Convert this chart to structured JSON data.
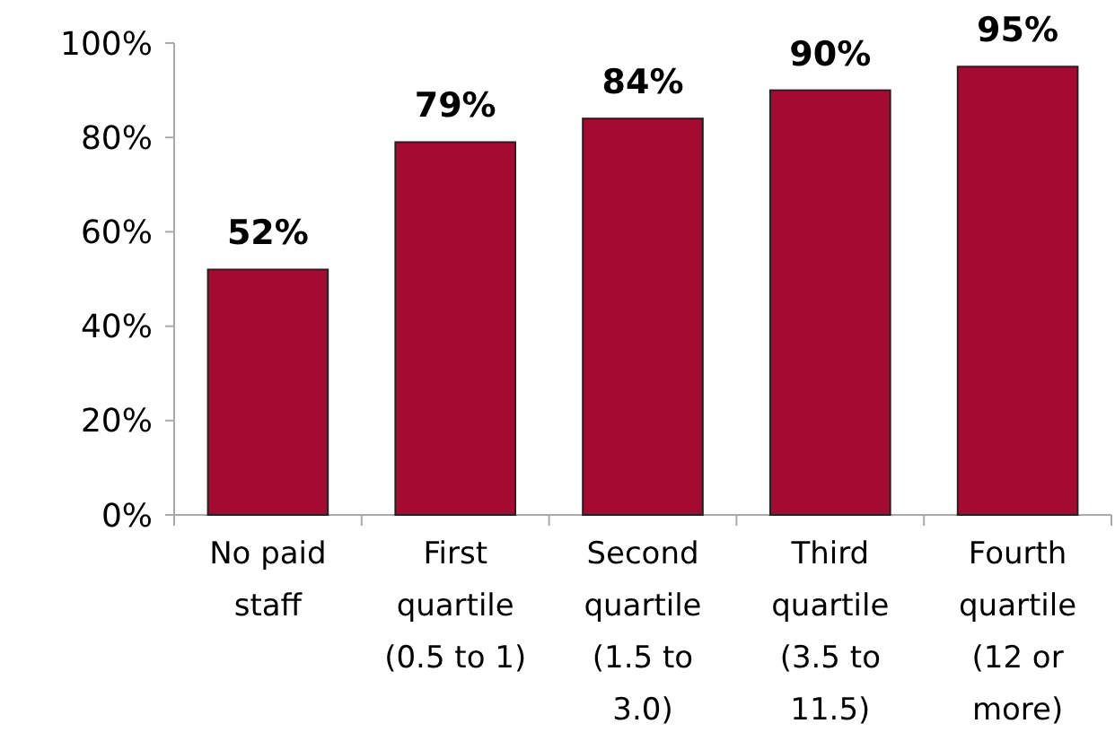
{
  "chart_data": {
    "type": "bar",
    "categories": [
      "No paid\nstaff",
      "First\nquartile\n(0.5 to 1)",
      "Second\nquartile\n(1.5 to\n3.0)",
      "Third\nquartile\n(3.5 to\n11.5)",
      "Fourth\nquartile\n(12 or\nmore)"
    ],
    "values": [
      52,
      79,
      84,
      90,
      95
    ],
    "value_labels": [
      "52%",
      "79%",
      "84%",
      "90%",
      "95%"
    ],
    "color": "#a50a33",
    "ylim": [
      0,
      100
    ],
    "yticks": [
      {
        "value": 0,
        "label": "0%"
      },
      {
        "value": 20,
        "label": "20%"
      },
      {
        "value": 40,
        "label": "40%"
      },
      {
        "value": 60,
        "label": "60%"
      },
      {
        "value": 80,
        "label": "80%"
      },
      {
        "value": 100,
        "label": "100%"
      }
    ]
  }
}
